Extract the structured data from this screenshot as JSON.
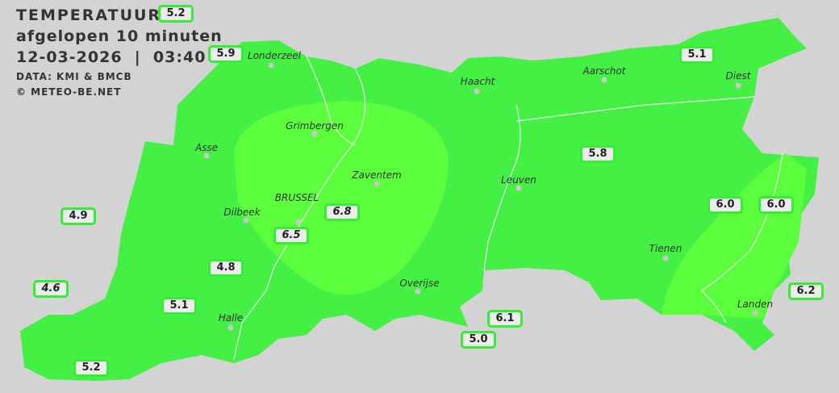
{
  "header": {
    "title": "TEMPERATUUR",
    "subtitle": "afgelopen 10 minuten",
    "datetime": "12-03-2026  |  03:40",
    "source": "DATA: KMI & BMCB",
    "copyright": "© METEO-BE.NET"
  },
  "colors": {
    "base": "#44f044",
    "warm_zone": "#5cff3c",
    "background": "#d3d3d3",
    "label_border": "#33ee33"
  },
  "cities": [
    {
      "name": "Londerzeel"
    },
    {
      "name": "Haacht"
    },
    {
      "name": "Aarschot"
    },
    {
      "name": "Diest"
    },
    {
      "name": "Grimbergen"
    },
    {
      "name": "Asse"
    },
    {
      "name": "Zaventem"
    },
    {
      "name": "Leuven"
    },
    {
      "name": "Dilbeek"
    },
    {
      "name": "BRUSSEL"
    },
    {
      "name": "Tienen"
    },
    {
      "name": "Overijse"
    },
    {
      "name": "Halle"
    },
    {
      "name": "Landen"
    }
  ],
  "readings": [
    {
      "value": "5.2",
      "italic": false
    },
    {
      "value": "5.9",
      "italic": false
    },
    {
      "value": "5.1",
      "italic": false
    },
    {
      "value": "5.8",
      "italic": false
    },
    {
      "value": "4.9",
      "italic": false
    },
    {
      "value": "6.5",
      "italic": true
    },
    {
      "value": "6.8",
      "italic": true
    },
    {
      "value": "6.0",
      "italic": false
    },
    {
      "value": "6.0",
      "italic": false
    },
    {
      "value": "4.8",
      "italic": false
    },
    {
      "value": "4.6",
      "italic": true
    },
    {
      "value": "5.1",
      "italic": false
    },
    {
      "value": "6.2",
      "italic": false
    },
    {
      "value": "6.1",
      "italic": false
    },
    {
      "value": "5.0",
      "italic": false
    },
    {
      "value": "5.2",
      "italic": false
    }
  ]
}
